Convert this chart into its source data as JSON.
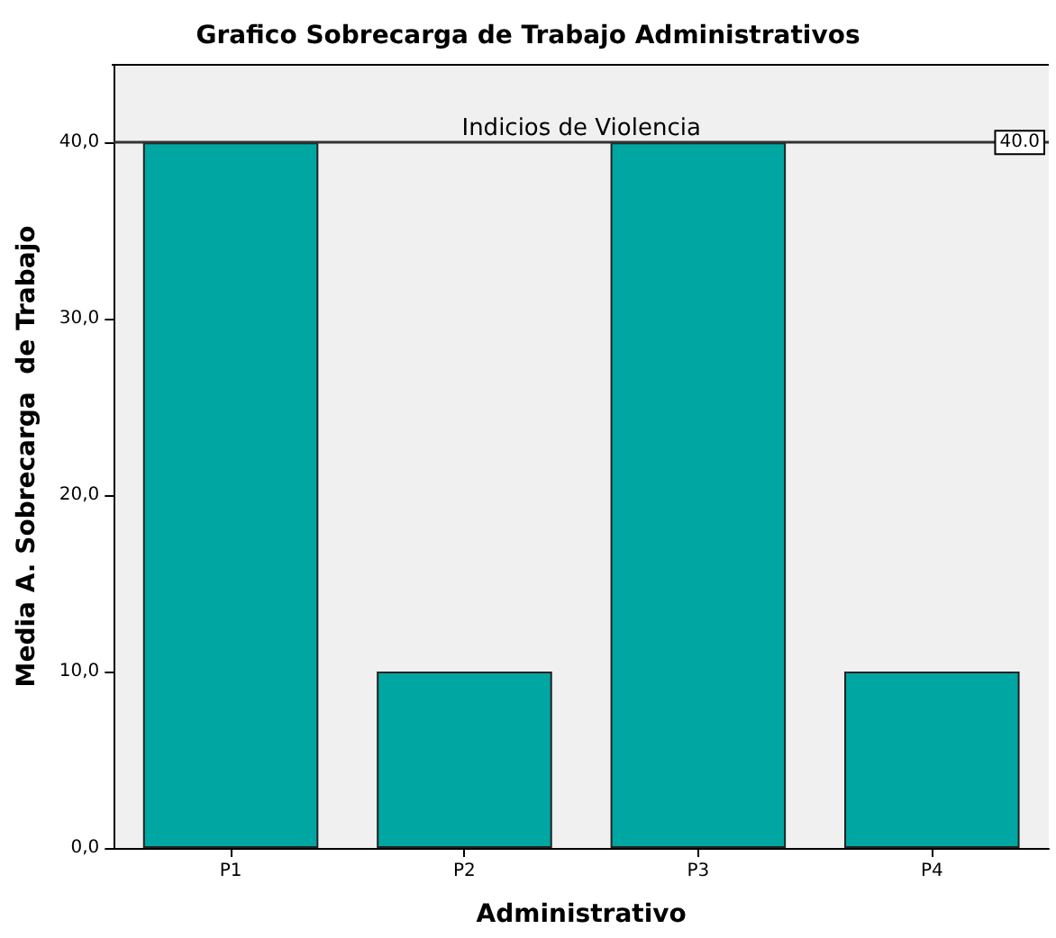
{
  "chart_data": {
    "type": "bar",
    "title": "Grafico Sobrecarga de Trabajo Administrativos",
    "xlabel": "Administrativo",
    "ylabel": "Media A. Sobrecarga  de Trabajo",
    "categories": [
      "P1",
      "P2",
      "P3",
      "P4"
    ],
    "values": [
      40,
      10,
      40,
      10
    ],
    "color": "#00a6a2",
    "ylim": [
      0,
      44.4
    ],
    "yticks": [
      {
        "value": 0,
        "label": "0,0"
      },
      {
        "value": 10,
        "label": "10,0"
      },
      {
        "value": 20,
        "label": "20,0"
      },
      {
        "value": 30,
        "label": "30,0"
      },
      {
        "value": 40,
        "label": "40,0"
      }
    ],
    "ref_lines": [
      {
        "axis": "y",
        "value": 40,
        "label": "Indicios de Violencia",
        "color": "#333333"
      }
    ],
    "annotations": [
      {
        "text": "40.0",
        "y": 40
      }
    ],
    "grid": false
  }
}
